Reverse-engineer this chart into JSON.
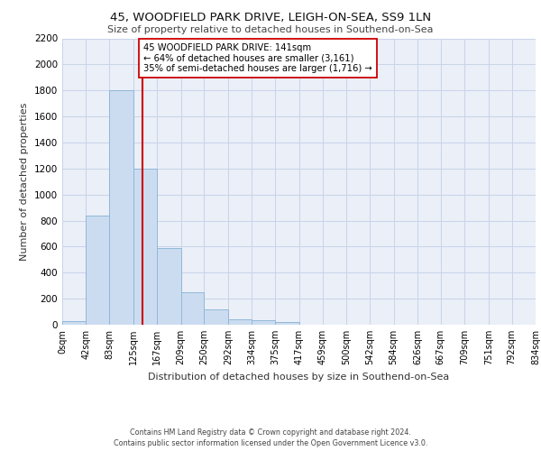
{
  "title_line1": "45, WOODFIELD PARK DRIVE, LEIGH-ON-SEA, SS9 1LN",
  "title_line2": "Size of property relative to detached houses in Southend-on-Sea",
  "xlabel": "Distribution of detached houses by size in Southend-on-Sea",
  "ylabel": "Number of detached properties",
  "bar_edges": [
    0,
    42,
    83,
    125,
    167,
    209,
    250,
    292,
    334,
    375,
    417,
    459,
    500,
    542,
    584,
    626,
    667,
    709,
    751,
    792,
    834
  ],
  "bar_heights": [
    25,
    840,
    1800,
    1200,
    590,
    250,
    120,
    40,
    35,
    20,
    0,
    0,
    0,
    0,
    0,
    0,
    0,
    0,
    0,
    0
  ],
  "bar_color": "#ccdcf0",
  "bar_edge_color": "#90b8d8",
  "property_size": 141,
  "property_line_color": "#cc0000",
  "annotation_text": "45 WOODFIELD PARK DRIVE: 141sqm\n← 64% of detached houses are smaller (3,161)\n35% of semi-detached houses are larger (1,716) →",
  "annotation_box_color": "#ffffff",
  "annotation_box_edge_color": "#cc0000",
  "ylim": [
    0,
    2200
  ],
  "yticks": [
    0,
    200,
    400,
    600,
    800,
    1000,
    1200,
    1400,
    1600,
    1800,
    2000,
    2200
  ],
  "grid_color": "#c8d4e8",
  "background_color": "#eaeff8",
  "footer_line1": "Contains HM Land Registry data © Crown copyright and database right 2024.",
  "footer_line2": "Contains public sector information licensed under the Open Government Licence v3.0.",
  "tick_labels": [
    "0sqm",
    "42sqm",
    "83sqm",
    "125sqm",
    "167sqm",
    "209sqm",
    "250sqm",
    "292sqm",
    "334sqm",
    "375sqm",
    "417sqm",
    "459sqm",
    "500sqm",
    "542sqm",
    "584sqm",
    "626sqm",
    "667sqm",
    "709sqm",
    "751sqm",
    "792sqm",
    "834sqm"
  ]
}
